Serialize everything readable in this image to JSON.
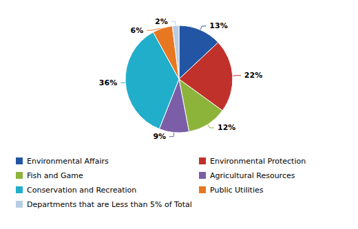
{
  "chart_data": {
    "type": "pie",
    "categories": [
      "Environmental Affairs",
      "Environmental Protection",
      "Fish and Game",
      "Agricultural Resources",
      "Conservation and Recreation",
      "Public Utilities",
      "Departments that are Less than 5% of Total"
    ],
    "values": [
      13,
      22,
      12,
      9,
      36,
      6,
      2
    ],
    "value_labels": [
      "13%",
      "22%",
      "12%",
      "9%",
      "36%",
      "6%",
      "2%"
    ],
    "colors": [
      "#2255A4",
      "#C0312B",
      "#8DB43A",
      "#7B5EA7",
      "#21AECB",
      "#E87722",
      "#B8CCE4"
    ],
    "data_labels": true,
    "legend": "bottom"
  }
}
